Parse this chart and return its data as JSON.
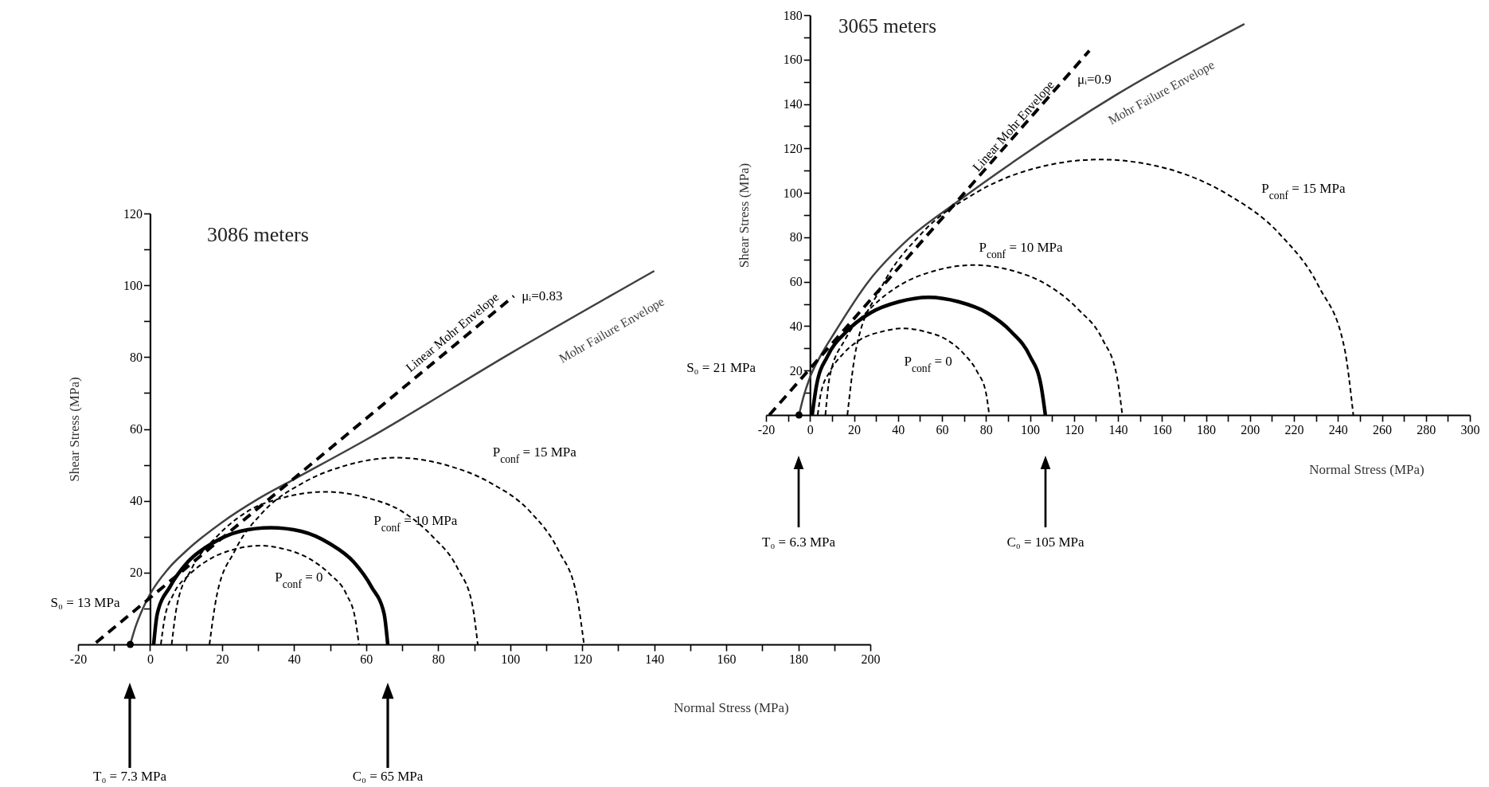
{
  "chart_data": [
    {
      "type": "line",
      "title": "3086  meters",
      "xlabel": "Normal Stress (MPa)",
      "ylabel": "Shear Stress (MPa)",
      "xlim": [
        -20,
        200
      ],
      "ylim": [
        0,
        120
      ],
      "xticks": [
        -20,
        {
          "value": -10,
          "label": null
        },
        0,
        {
          "value": 10,
          "label": null
        },
        20,
        {
          "value": 30,
          "label": null
        },
        40,
        {
          "value": 50,
          "label": null
        },
        60,
        {
          "value": 70,
          "label": null
        },
        80,
        {
          "value": 90,
          "label": null
        },
        100,
        {
          "value": 110,
          "label": null
        },
        120,
        {
          "value": 130,
          "label": null
        },
        140,
        {
          "value": 150,
          "label": null
        },
        160,
        {
          "value": 170,
          "label": null
        },
        180,
        {
          "value": 190,
          "label": null
        },
        200
      ],
      "yticks": [
        {
          "value": 10,
          "label": null
        },
        20,
        {
          "value": 30,
          "label": null
        },
        40,
        {
          "value": 50,
          "label": null
        },
        60,
        {
          "value": 70,
          "label": null
        },
        80,
        {
          "value": 90,
          "label": null
        },
        100,
        {
          "value": 110,
          "label": null
        },
        120
      ],
      "grid": false,
      "series": [
        {
          "name": "Mohr Failure Envelope",
          "type": "line",
          "line_style": "solid",
          "color": "#404040",
          "x": [
            -5.5,
            -4,
            -2,
            0,
            5,
            10,
            20,
            30,
            40,
            60,
            100,
            140
          ],
          "values": [
            0,
            5,
            10,
            14,
            21,
            26,
            34,
            40.5,
            46,
            57,
            81,
            104
          ]
        },
        {
          "name": "Linear Mohr Envelope",
          "type": "line",
          "line_style": "dashed",
          "color": "#000000",
          "x": [
            -15,
            101
          ],
          "values": [
            0.5,
            97
          ]
        },
        {
          "name": "P$_{conf}$ = 0",
          "type": "line",
          "line_style": "dashed",
          "color": "#000000",
          "x": [
            3,
            4,
            6.5,
            11,
            17,
            23.5,
            30.5,
            37.5,
            44,
            50,
            54.5,
            57,
            58
          ],
          "values": [
            0,
            7,
            14,
            19.5,
            24,
            26.5,
            27.5,
            26.5,
            24,
            19.5,
            14,
            7,
            0
          ]
        },
        {
          "name": "P$_{conf}$ = 10 MPa",
          "type": "line",
          "line_style": "dashed",
          "color": "#000000",
          "x": [
            6,
            7.5,
            11.5,
            18.5,
            27,
            37.5,
            48.5,
            59.5,
            70,
            78.5,
            85.5,
            89.5,
            91
          ],
          "values": [
            0,
            11,
            21,
            30,
            37,
            41,
            42.5,
            41,
            37,
            30,
            21,
            11,
            0
          ]
        },
        {
          "name": "P$_{conf}$ = 15 MPa",
          "type": "line",
          "line_style": "dashed",
          "color": "#000000",
          "x": [
            16.5,
            18.5,
            23.5,
            31.5,
            42.5,
            55,
            68.5,
            82,
            94.5,
            105.5,
            113.5,
            118.5,
            120.5
          ],
          "values": [
            0,
            13.5,
            26,
            37,
            45,
            50,
            52,
            50,
            45,
            37,
            26,
            13.5,
            0
          ]
        },
        {
          "type": "line",
          "line_style": "solid",
          "color": "#000000",
          "x": [
            1,
            2,
            5.5,
            10.5,
            17,
            25,
            33.5,
            42,
            50,
            56.5,
            61.5,
            65,
            66
          ],
          "values": [
            0,
            8.5,
            16,
            23,
            28,
            31.5,
            32.5,
            31.5,
            28,
            23,
            16,
            8.5,
            0
          ]
        },
        {
          "type": "scatter",
          "marker": "circle",
          "color": "#000000",
          "x": [
            -5.5
          ],
          "values": [
            0
          ]
        }
      ],
      "annotations": [
        {
          "text": "μᵢ=0.83",
          "x": 101,
          "y": 97
        },
        {
          "text": "S₀ = 13 MPa",
          "x": 0,
          "y": 13
        },
        "T₀ = 7.3 MPa",
        "C₀ = 65 MPa"
      ]
    },
    {
      "type": "line",
      "title": "3065 meters",
      "xlabel": "Normal Stress (MPa)",
      "ylabel": "Shear Stress (MPa)",
      "xlim": [
        -20,
        300
      ],
      "ylim": [
        0,
        180
      ],
      "xticks": [
        -20,
        {
          "value": -10,
          "label": null
        },
        0,
        {
          "value": 10,
          "label": null
        },
        20,
        {
          "value": 30,
          "label": null
        },
        40,
        {
          "value": 50,
          "label": null
        },
        60,
        {
          "value": 70,
          "label": null
        },
        80,
        {
          "value": 90,
          "label": null
        },
        100,
        {
          "value": 110,
          "label": null
        },
        120,
        {
          "value": 130,
          "label": null
        },
        140,
        {
          "value": 150,
          "label": null
        },
        160,
        {
          "value": 170,
          "label": null
        },
        180,
        {
          "value": 190,
          "label": null
        },
        200,
        {
          "value": 210,
          "label": null
        },
        220,
        {
          "value": 230,
          "label": null
        },
        240,
        {
          "value": 250,
          "label": null
        },
        260,
        {
          "value": 270,
          "label": null
        },
        280,
        {
          "value": 290,
          "label": null
        },
        300
      ],
      "yticks": [
        {
          "value": 10,
          "label": null
        },
        20,
        {
          "value": 30,
          "label": null
        },
        40,
        {
          "value": 50,
          "label": null
        },
        60,
        {
          "value": 70,
          "label": null
        },
        80,
        {
          "value": 90,
          "label": null
        },
        100,
        {
          "value": 110,
          "label": null
        },
        120,
        {
          "value": 130,
          "label": null
        },
        140,
        {
          "value": 150,
          "label": null
        },
        160,
        {
          "value": 170,
          "label": null
        },
        180
      ],
      "grid": false,
      "series": [
        {
          "name": "Mohr Failure Envelope",
          "type": "line",
          "line_style": "solid",
          "color": "#404040",
          "x": [
            -5,
            -3,
            0,
            5,
            10.5,
            26.5,
            44.5,
            67,
            94,
            139,
            197.5
          ],
          "values": [
            0,
            8,
            17,
            27,
            36,
            60,
            79,
            96,
            115,
            144,
            176
          ]
        },
        {
          "name": "Linear Mohr Envelope",
          "type": "line",
          "line_style": "dashed",
          "color": "#000000",
          "x": [
            -18.5,
            127
          ],
          "values": [
            0,
            164
          ]
        },
        {
          "name": "P$_{conf}$ = 0",
          "type": "line",
          "line_style": "dashed",
          "color": "#000000",
          "x": [
            3.5,
            5,
            9,
            15,
            23,
            32.5,
            42.5,
            52.5,
            62,
            70,
            76,
            80,
            81.5
          ],
          "values": [
            0,
            10,
            19.5,
            27.5,
            34,
            37.5,
            39,
            37.5,
            34,
            27.5,
            19.5,
            10,
            0
          ]
        },
        {
          "name": "P$_{conf}$ = 10 MPa",
          "type": "line",
          "line_style": "dashed",
          "color": "#000000",
          "x": [
            7,
            9,
            16,
            27,
            41,
            57,
            74.5,
            92,
            108,
            122,
            133,
            139.5,
            142
          ],
          "values": [
            0,
            17.5,
            34,
            47.5,
            58.5,
            65,
            67.5,
            65,
            58.5,
            47.5,
            34,
            17.5,
            0
          ]
        },
        {
          "name": "P$_{conf}$ = 15 MPa",
          "type": "line",
          "line_style": "dashed",
          "color": "#000000",
          "x": [
            17,
            21,
            32.5,
            50.5,
            74.5,
            102,
            132,
            162,
            189.5,
            213.5,
            231.5,
            243,
            247
          ],
          "values": [
            0,
            30,
            57.5,
            81.5,
            99.5,
            111,
            115,
            111,
            99.5,
            81.5,
            57.5,
            30,
            0
          ]
        },
        {
          "type": "line",
          "line_style": "solid",
          "color": "#000000",
          "x": [
            1,
            3,
            8,
            16.5,
            27.5,
            40.5,
            54,
            67.5,
            80.5,
            91.5,
            100,
            105,
            107
          ],
          "values": [
            0,
            13.5,
            26.5,
            37.5,
            46,
            51,
            53,
            51,
            46,
            37.5,
            26.5,
            13.5,
            0
          ]
        },
        {
          "type": "scatter",
          "marker": "circle",
          "color": "#000000",
          "x": [
            -5
          ],
          "values": [
            0
          ]
        }
      ],
      "annotations": [
        {
          "text": "μᵢ=0.9",
          "x": 127,
          "y": 164
        },
        "S₀ = 21 MPa",
        "T₀ = 6.3 MPa",
        "C₀ = 105 MPa"
      ]
    }
  ]
}
